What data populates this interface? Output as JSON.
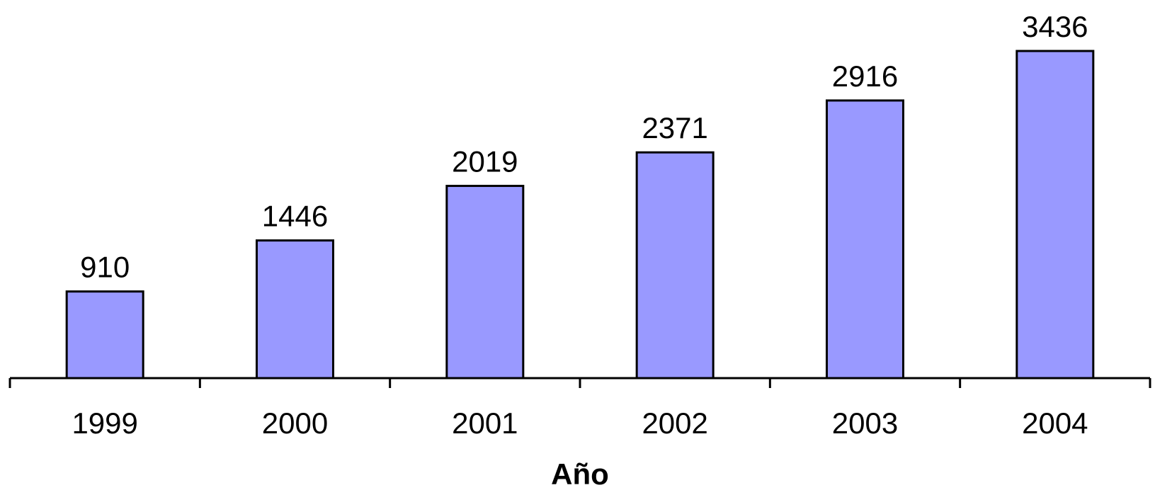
{
  "chart_data": {
    "type": "bar",
    "categories": [
      "1999",
      "2000",
      "2001",
      "2002",
      "2003",
      "2004"
    ],
    "values": [
      910,
      1446,
      2019,
      2371,
      2916,
      3436
    ],
    "xlabel": "Año",
    "ylabel": "",
    "ylim": [
      0,
      3436
    ],
    "grid": false,
    "data_labels": true,
    "colors": {
      "bar_fill": "#9999ff",
      "bar_stroke": "#000000"
    }
  }
}
